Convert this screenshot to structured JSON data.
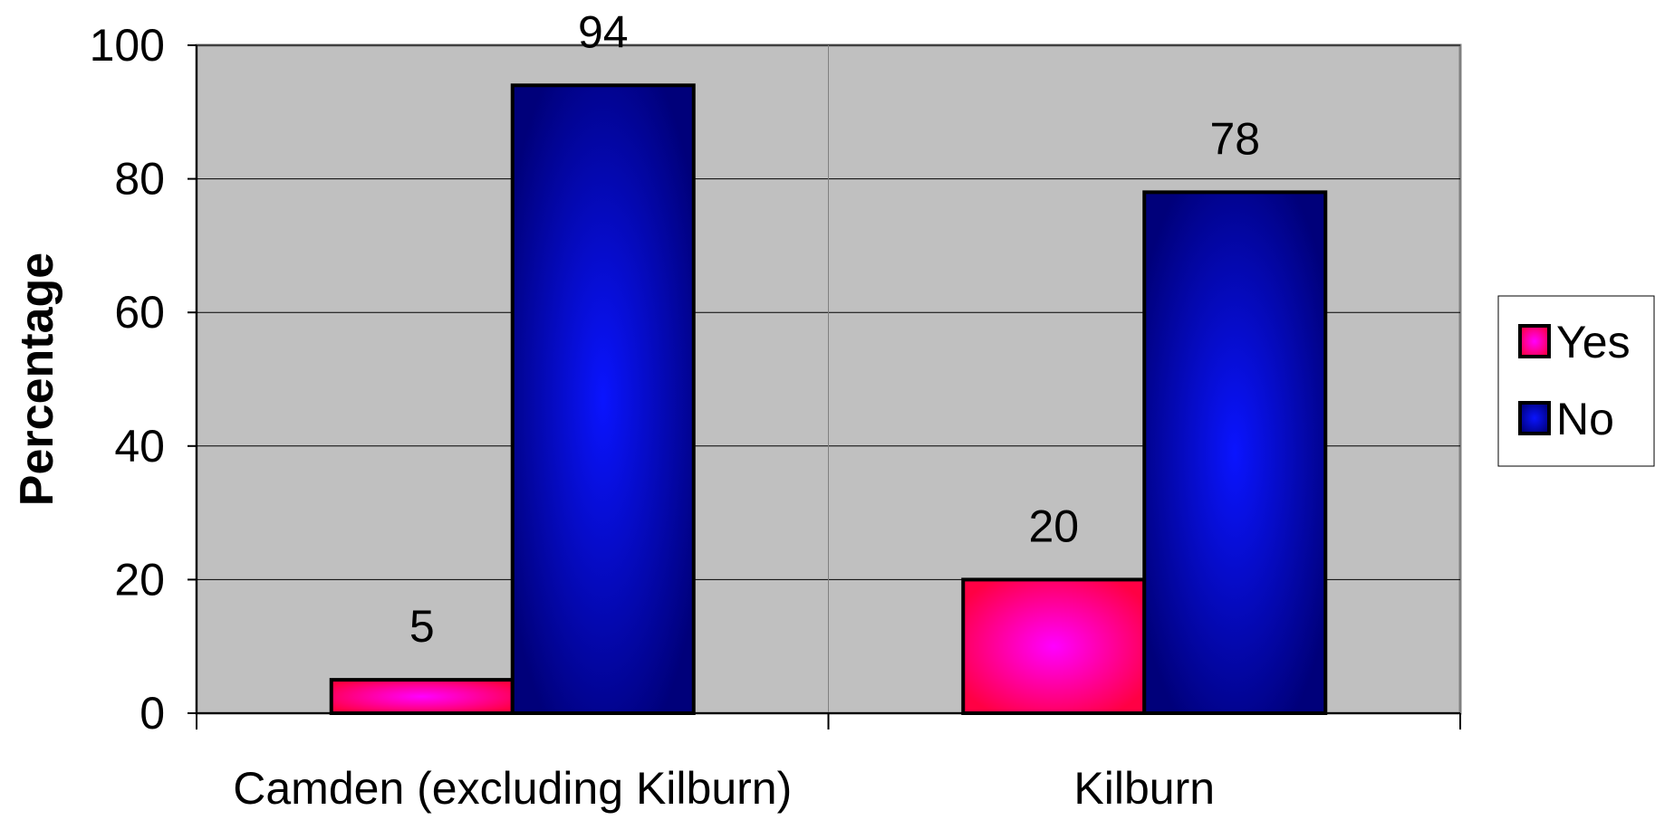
{
  "chart_data": {
    "type": "bar",
    "categories": [
      "Camden (excluding Kilburn)",
      "Kilburn"
    ],
    "series": [
      {
        "name": "Yes",
        "values": [
          5,
          20
        ],
        "color": "#ff00cc"
      },
      {
        "name": "No",
        "values": [
          94,
          78
        ],
        "color": "#0000cc"
      }
    ],
    "ylabel": "Percentage",
    "ylim": [
      0,
      100
    ],
    "yticks": [
      0,
      20,
      40,
      60,
      80,
      100
    ],
    "grid": true,
    "legend_position": "right",
    "plot_background": "#c0c0c0"
  }
}
